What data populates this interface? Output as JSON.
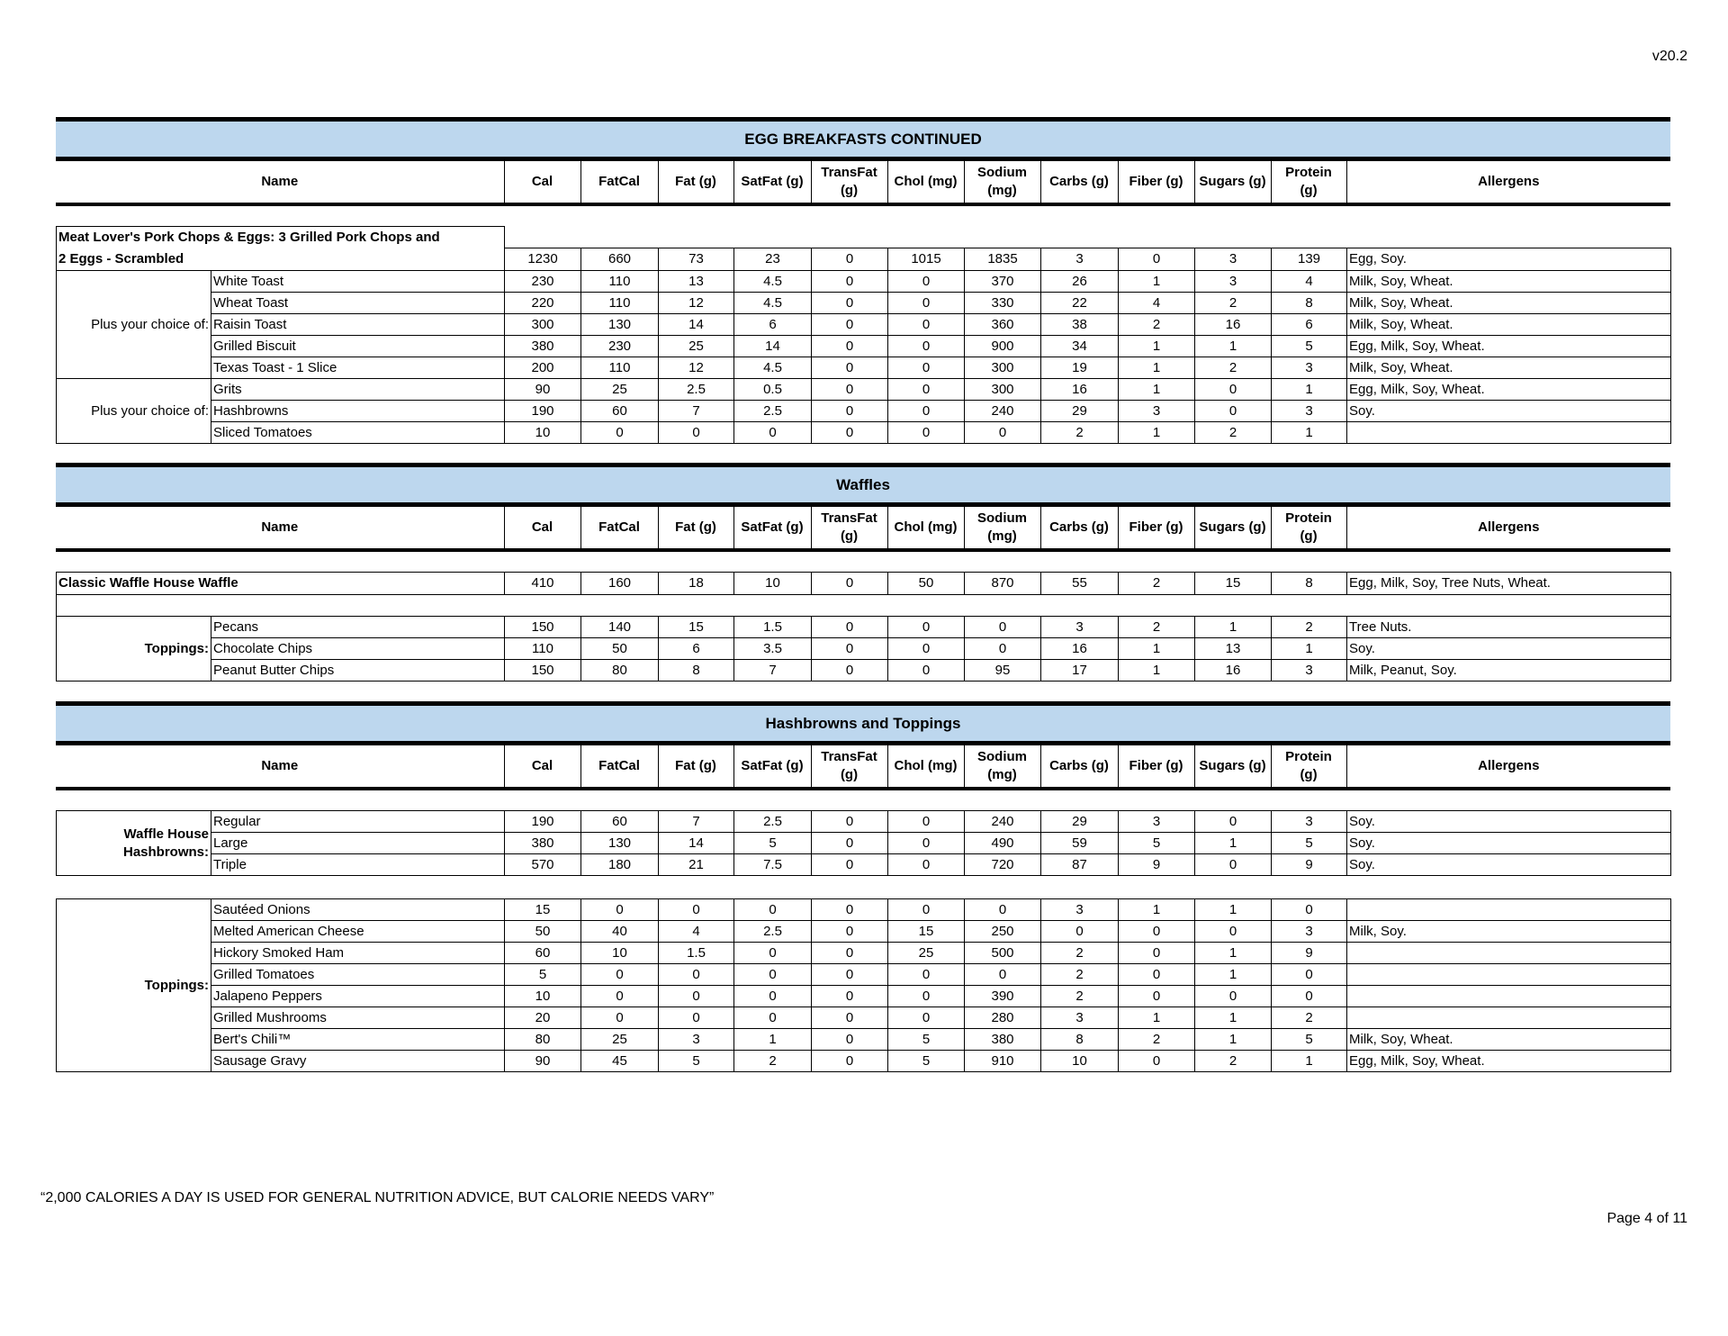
{
  "version": "v20.2",
  "columns": [
    "Name",
    "Cal",
    "FatCal",
    "Fat (g)",
    "SatFat (g)",
    "TransFat\n(g)",
    "Chol (mg)",
    "Sodium\n(mg)",
    "Carbs (g)",
    "Fiber (g)",
    "Sugars (g)",
    "Protein\n(g)",
    "Allergens"
  ],
  "colors": {
    "band": "#bdd7ee",
    "rule": "#000000"
  },
  "sections": [
    {
      "title": "EGG BREAKFASTS CONTINUED",
      "blocks": [
        [
          {
            "type": "item",
            "name_lines": [
              "Meat Lover's Pork Chops & Eggs: 3 Grilled Pork Chops and",
              "2 Eggs - Scrambled"
            ],
            "values": [
              "1230",
              "660",
              "73",
              "23",
              "0",
              "1015",
              "1835",
              "3",
              "0",
              "3",
              "139"
            ],
            "allergens": "Egg, Soy."
          },
          {
            "type": "choice",
            "label": "Plus your choice of:",
            "label_bold": false,
            "rows": [
              {
                "name": "White Toast",
                "values": [
                  "230",
                  "110",
                  "13",
                  "4.5",
                  "0",
                  "0",
                  "370",
                  "26",
                  "1",
                  "3",
                  "4"
                ],
                "allergens": "Milk, Soy, Wheat."
              },
              {
                "name": "Wheat Toast",
                "values": [
                  "220",
                  "110",
                  "12",
                  "4.5",
                  "0",
                  "0",
                  "330",
                  "22",
                  "4",
                  "2",
                  "8"
                ],
                "allergens": "Milk, Soy, Wheat."
              },
              {
                "name": "Raisin Toast",
                "values": [
                  "300",
                  "130",
                  "14",
                  "6",
                  "0",
                  "0",
                  "360",
                  "38",
                  "2",
                  "16",
                  "6"
                ],
                "allergens": "Milk, Soy, Wheat."
              },
              {
                "name": "Grilled Biscuit",
                "values": [
                  "380",
                  "230",
                  "25",
                  "14",
                  "0",
                  "0",
                  "900",
                  "34",
                  "1",
                  "1",
                  "5"
                ],
                "allergens": "Egg, Milk, Soy, Wheat."
              },
              {
                "name": "Texas Toast - 1 Slice",
                "values": [
                  "200",
                  "110",
                  "12",
                  "4.5",
                  "0",
                  "0",
                  "300",
                  "19",
                  "1",
                  "2",
                  "3"
                ],
                "allergens": "Milk, Soy, Wheat."
              }
            ]
          },
          {
            "type": "choice",
            "label": "Plus your choice of:",
            "label_bold": false,
            "rows": [
              {
                "name": "Grits",
                "values": [
                  "90",
                  "25",
                  "2.5",
                  "0.5",
                  "0",
                  "0",
                  "300",
                  "16",
                  "1",
                  "0",
                  "1"
                ],
                "allergens": "Egg, Milk, Soy, Wheat."
              },
              {
                "name": "Hashbrowns",
                "values": [
                  "190",
                  "60",
                  "7",
                  "2.5",
                  "0",
                  "0",
                  "240",
                  "29",
                  "3",
                  "0",
                  "3"
                ],
                "allergens": "Soy."
              },
              {
                "name": "Sliced Tomatoes",
                "values": [
                  "10",
                  "0",
                  "0",
                  "0",
                  "0",
                  "0",
                  "0",
                  "2",
                  "1",
                  "2",
                  "1"
                ],
                "allergens": ""
              }
            ]
          }
        ]
      ]
    },
    {
      "title": "Waffles",
      "blocks": [
        [
          {
            "type": "item",
            "name_lines": [
              "Classic Waffle House Waffle"
            ],
            "values": [
              "410",
              "160",
              "18",
              "10",
              "0",
              "50",
              "870",
              "55",
              "2",
              "15",
              "8"
            ],
            "allergens": "Egg, Milk, Soy, Tree Nuts, Wheat."
          },
          {
            "type": "empty"
          },
          {
            "type": "choice",
            "label": "Toppings:",
            "label_bold": true,
            "rows": [
              {
                "name": "Pecans",
                "values": [
                  "150",
                  "140",
                  "15",
                  "1.5",
                  "0",
                  "0",
                  "0",
                  "3",
                  "2",
                  "1",
                  "2"
                ],
                "allergens": "Tree Nuts."
              },
              {
                "name": "Chocolate Chips",
                "values": [
                  "110",
                  "50",
                  "6",
                  "3.5",
                  "0",
                  "0",
                  "0",
                  "16",
                  "1",
                  "13",
                  "1"
                ],
                "allergens": "Soy."
              },
              {
                "name": "Peanut Butter Chips",
                "values": [
                  "150",
                  "80",
                  "8",
                  "7",
                  "0",
                  "0",
                  "95",
                  "17",
                  "1",
                  "16",
                  "3"
                ],
                "allergens": "Milk, Peanut, Soy."
              }
            ]
          }
        ]
      ]
    },
    {
      "title": "Hashbrowns and Toppings",
      "blocks": [
        [
          {
            "type": "choice",
            "label": "Waffle House Hashbrowns:",
            "label_bold": true,
            "rows": [
              {
                "name": "Regular",
                "values": [
                  "190",
                  "60",
                  "7",
                  "2.5",
                  "0",
                  "0",
                  "240",
                  "29",
                  "3",
                  "0",
                  "3"
                ],
                "allergens": "Soy."
              },
              {
                "name": "Large",
                "values": [
                  "380",
                  "130",
                  "14",
                  "5",
                  "0",
                  "0",
                  "490",
                  "59",
                  "5",
                  "1",
                  "5"
                ],
                "allergens": "Soy."
              },
              {
                "name": "Triple",
                "values": [
                  "570",
                  "180",
                  "21",
                  "7.5",
                  "0",
                  "0",
                  "720",
                  "87",
                  "9",
                  "0",
                  "9"
                ],
                "allergens": "Soy."
              }
            ]
          }
        ],
        [
          {
            "type": "choice",
            "label": "Toppings:",
            "label_bold": true,
            "rows": [
              {
                "name": "Sautéed Onions",
                "values": [
                  "15",
                  "0",
                  "0",
                  "0",
                  "0",
                  "0",
                  "0",
                  "3",
                  "1",
                  "1",
                  "0"
                ],
                "allergens": ""
              },
              {
                "name": "Melted American Cheese",
                "values": [
                  "50",
                  "40",
                  "4",
                  "2.5",
                  "0",
                  "15",
                  "250",
                  "0",
                  "0",
                  "0",
                  "3"
                ],
                "allergens": "Milk, Soy."
              },
              {
                "name": "Hickory Smoked Ham",
                "values": [
                  "60",
                  "10",
                  "1.5",
                  "0",
                  "0",
                  "25",
                  "500",
                  "2",
                  "0",
                  "1",
                  "9"
                ],
                "allergens": ""
              },
              {
                "name": "Grilled Tomatoes",
                "values": [
                  "5",
                  "0",
                  "0",
                  "0",
                  "0",
                  "0",
                  "0",
                  "2",
                  "0",
                  "1",
                  "0"
                ],
                "allergens": ""
              },
              {
                "name": "Jalapeno Peppers",
                "values": [
                  "10",
                  "0",
                  "0",
                  "0",
                  "0",
                  "0",
                  "390",
                  "2",
                  "0",
                  "0",
                  "0"
                ],
                "allergens": ""
              },
              {
                "name": "Grilled Mushrooms",
                "values": [
                  "20",
                  "0",
                  "0",
                  "0",
                  "0",
                  "0",
                  "280",
                  "3",
                  "1",
                  "1",
                  "2"
                ],
                "allergens": ""
              },
              {
                "name": "Bert's Chili™",
                "values": [
                  "80",
                  "25",
                  "3",
                  "1",
                  "0",
                  "5",
                  "380",
                  "8",
                  "2",
                  "1",
                  "5"
                ],
                "allergens": "Milk, Soy, Wheat."
              },
              {
                "name": "Sausage Gravy",
                "values": [
                  "90",
                  "45",
                  "5",
                  "2",
                  "0",
                  "5",
                  "910",
                  "10",
                  "0",
                  "2",
                  "1"
                ],
                "allergens": "Egg, Milk, Soy, Wheat."
              }
            ]
          }
        ]
      ]
    }
  ],
  "footer": {
    "disclaimer": "“2,000 CALORIES A DAY IS USED FOR GENERAL NUTRITION ADVICE, BUT CALORIE NEEDS VARY”",
    "page": "Page 4 of 11"
  }
}
